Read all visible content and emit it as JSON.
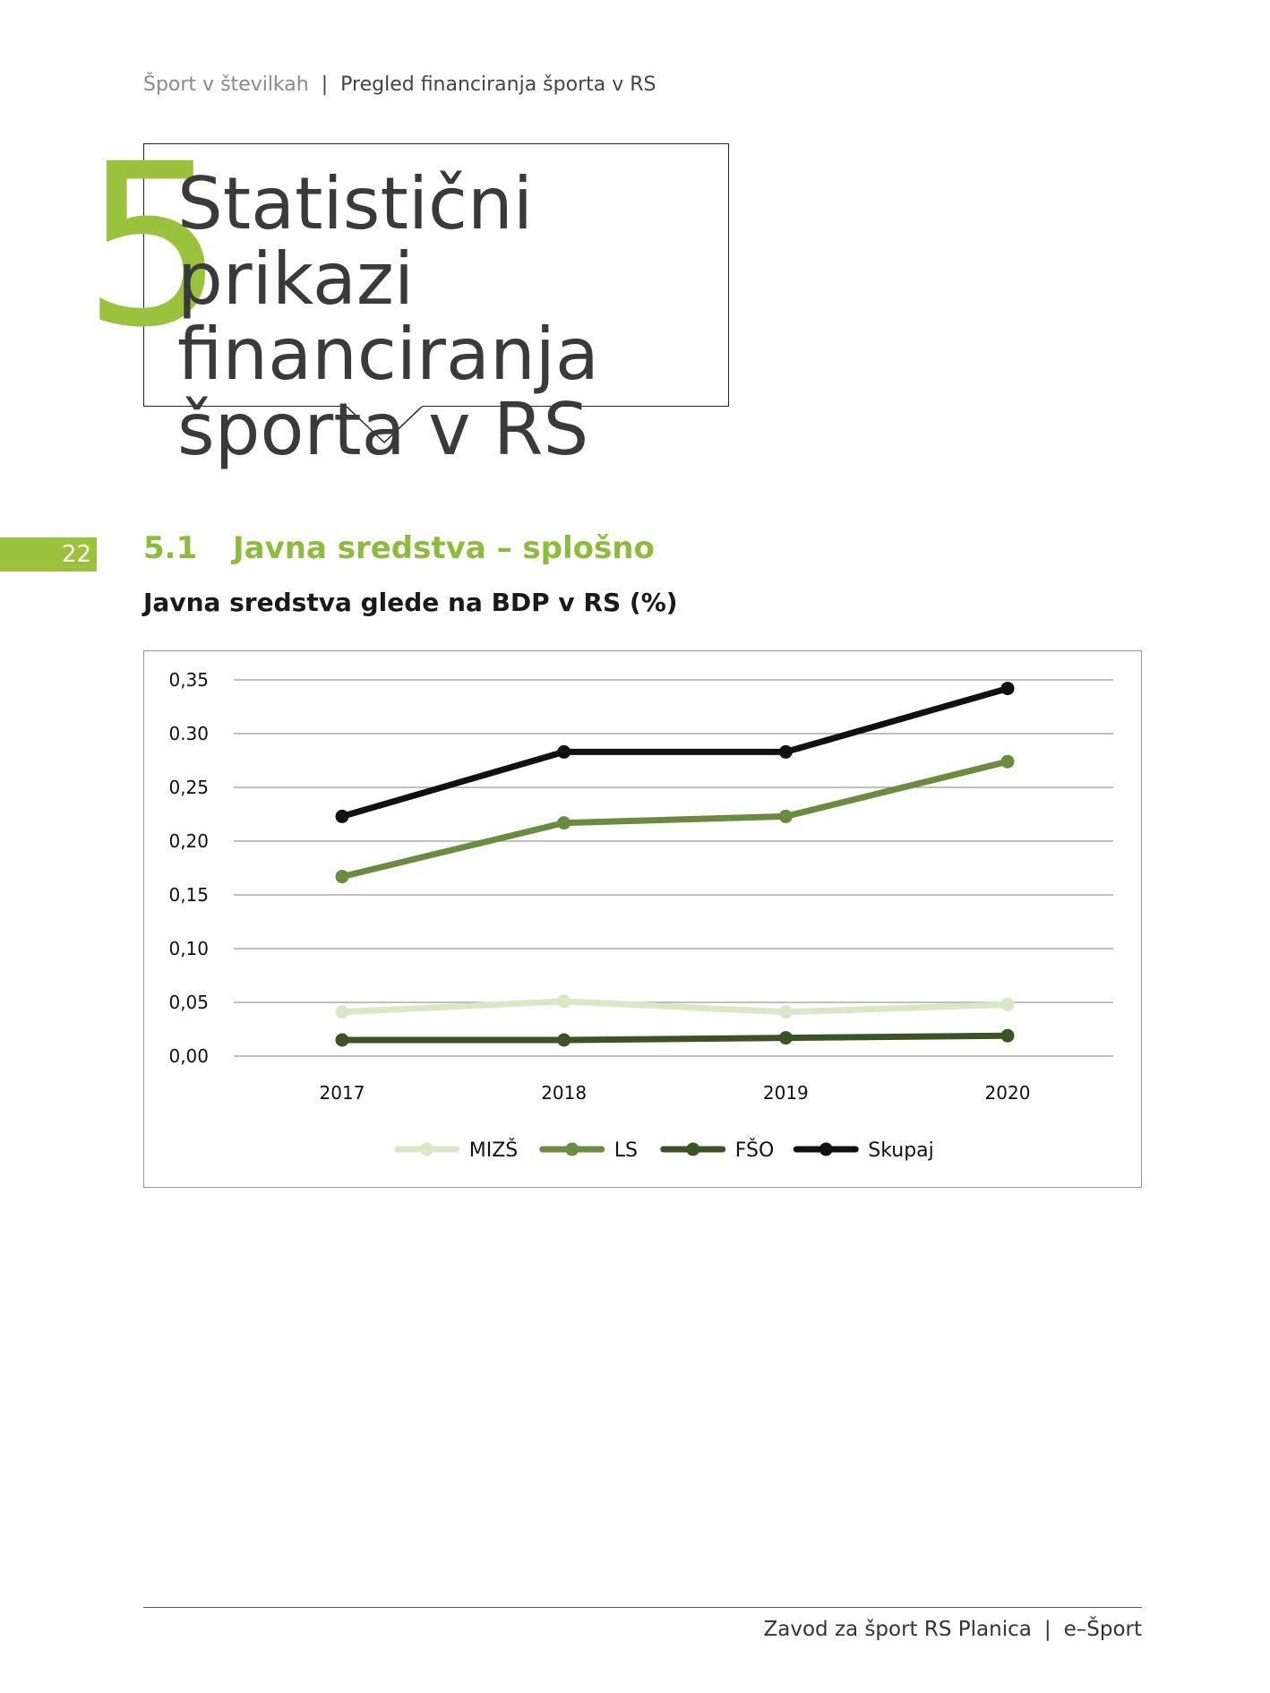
{
  "header": {
    "left": "Šport v številkah",
    "separator": "|",
    "right": "Pregled financiranja športa v RS"
  },
  "chapter": {
    "number": "5",
    "title_lines": [
      "Statistični prikazi",
      "financiranja",
      "športa v RS"
    ]
  },
  "page_number": "22",
  "section": {
    "number": "5.1",
    "title": "Javna sredstva – splošno"
  },
  "chart_caption": "Javna sredstva glede na BDP v RS (%)",
  "chart_data": {
    "type": "line",
    "x": [
      "2017",
      "2018",
      "2019",
      "2020"
    ],
    "ylim": [
      0,
      0.35
    ],
    "yticks": [
      "0,00",
      "0,05",
      "0,10",
      "0,15",
      "0,20",
      "0,25",
      "0.30",
      "0,35"
    ],
    "grid": true,
    "legend_position": "bottom",
    "series": [
      {
        "name": "MIZŠ",
        "values": [
          0.041,
          0.051,
          0.041,
          0.048
        ],
        "color": "#d8e8c4"
      },
      {
        "name": "LS",
        "values": [
          0.167,
          0.217,
          0.223,
          0.274
        ],
        "color": "#6a8c3e"
      },
      {
        "name": "FŠO",
        "values": [
          0.015,
          0.015,
          0.017,
          0.019
        ],
        "color": "#3b5426"
      },
      {
        "name": "Skupaj",
        "values": [
          0.223,
          0.283,
          0.283,
          0.342
        ],
        "color": "#111111"
      }
    ]
  },
  "footer": {
    "left": "Zavod za šport RS Planica",
    "separator": "|",
    "right": "e–Šport"
  }
}
